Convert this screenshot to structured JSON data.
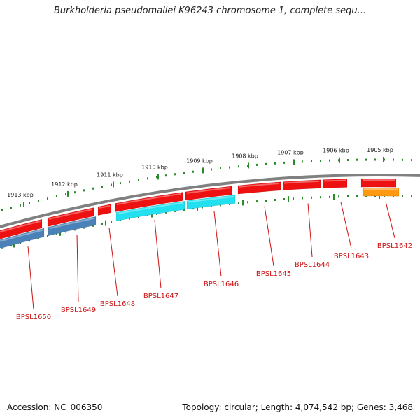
{
  "title": "Burkholderia pseudomallei K96243 chromosome 1, complete sequ...",
  "footer": {
    "accession": "Accession: NC_006350",
    "summary": "Topology: circular; Length: 4,074,542 bp; Genes: 3,468"
  },
  "colors": {
    "forward_gene": "#ee1111",
    "reverse_gene_blue": "#4a82b8",
    "reverse_gene_cyan": "#22e0f0",
    "reverse_gene_orange": "#ff9911",
    "backbone": "#808080",
    "ticks": "#2a8a2a",
    "label": "#cc1111"
  },
  "scale_labels": [
    "1913 kbp",
    "1912 kbp",
    "1911 kbp",
    "1910 kbp",
    "1909 kbp",
    "1908 kbp",
    "1907 kbp",
    "1906 kbp",
    "1905 kbp"
  ],
  "gene_labels": [
    "BPSL1650",
    "BPSL1649",
    "BPSL1648",
    "BPSL1647",
    "BPSL1646",
    "BPSL1645",
    "BPSL1644",
    "BPSL1643",
    "BPSL1642"
  ]
}
